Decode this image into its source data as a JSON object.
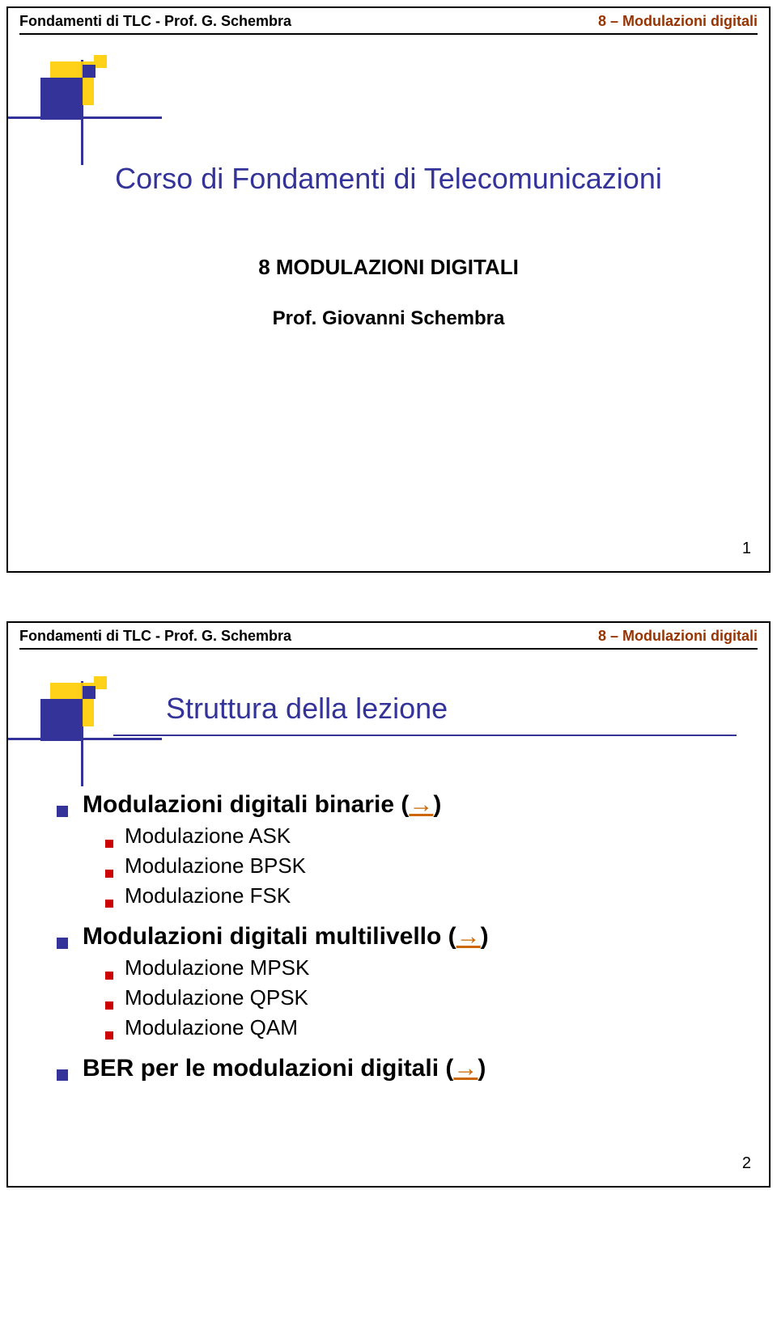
{
  "colors": {
    "header_right": "#993300",
    "title_blue": "#333399",
    "bullet_blue": "#333399",
    "bullet_red": "#cc0000",
    "arrow_orange": "#cc6600",
    "deco_yellow": "#ffcc00"
  },
  "header": {
    "left": "Fondamenti di TLC - Prof. G. Schembra",
    "right": "8 – Modulazioni digitali"
  },
  "slide1": {
    "title": "Corso di Fondamenti di Telecomunicazioni",
    "subtitle": "8 MODULAZIONI DIGITALI",
    "prof": "Prof. Giovanni Schembra",
    "page": "1"
  },
  "slide2": {
    "title": "Struttura della lezione",
    "arrow_glyph": "→",
    "l1a": "Modulazioni digitali binarie (",
    "l1a_end": ")",
    "l2a1": "Modulazione ASK",
    "l2a2": "Modulazione BPSK",
    "l2a3": "Modulazione FSK",
    "l1b": "Modulazioni digitali multilivello (",
    "l1b_end": ")",
    "l2b1": "Modulazione MPSK",
    "l2b2": "Modulazione QPSK",
    "l2b3": "Modulazione QAM",
    "l1c": "BER per le modulazioni digitali (",
    "l1c_end": ")",
    "page": "2"
  }
}
